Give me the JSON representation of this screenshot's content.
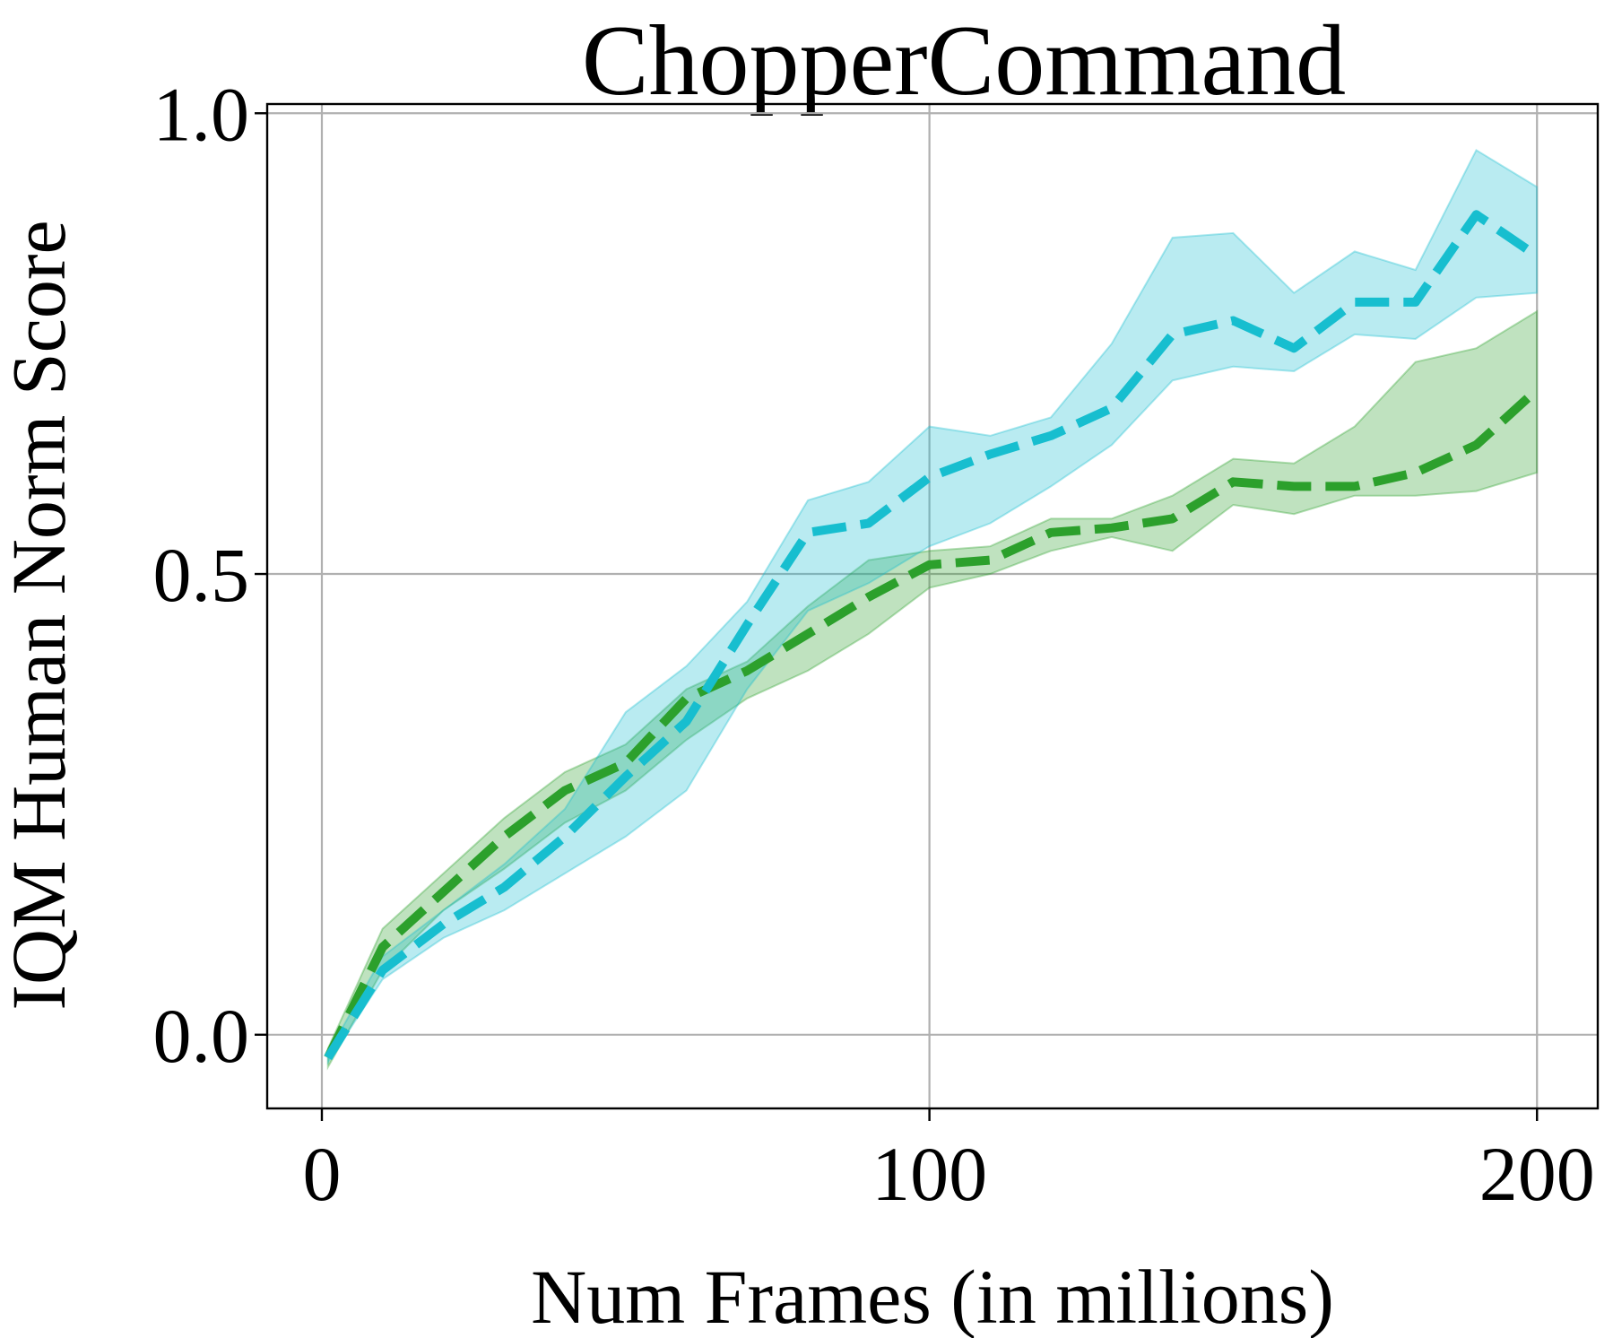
{
  "chart_data": {
    "type": "line",
    "title": "ChopperCommand",
    "xlabel": "Num Frames (in millions)",
    "ylabel": "IQM Human Norm Score",
    "xlim": [
      -9,
      210
    ],
    "ylim": [
      -0.08,
      1.01
    ],
    "xticks": [
      0,
      100,
      200
    ],
    "xtick_labels": [
      "0",
      "100",
      "200"
    ],
    "yticks": [
      0.0,
      0.5,
      1.0
    ],
    "ytick_labels": [
      "0.0",
      "0.5",
      "1.0"
    ],
    "grid": true,
    "legend": "none",
    "x": [
      1,
      10,
      20,
      30,
      40,
      50,
      60,
      70,
      80,
      90,
      100,
      110,
      120,
      130,
      140,
      150,
      160,
      170,
      180,
      190,
      200
    ],
    "series": [
      {
        "color": "#2ca02c",
        "line_style": "dashed",
        "values": [
          -0.025,
          0.095,
          0.155,
          0.215,
          0.265,
          0.295,
          0.365,
          0.395,
          0.435,
          0.475,
          0.51,
          0.515,
          0.545,
          0.55,
          0.56,
          0.6,
          0.595,
          0.595,
          0.61,
          0.64,
          0.7
        ],
        "lower": [
          -0.035,
          0.07,
          0.135,
          0.18,
          0.23,
          0.265,
          0.32,
          0.365,
          0.395,
          0.435,
          0.485,
          0.5,
          0.525,
          0.54,
          0.525,
          0.575,
          0.565,
          0.585,
          0.585,
          0.59,
          0.61
        ],
        "upper": [
          -0.015,
          0.115,
          0.175,
          0.235,
          0.285,
          0.315,
          0.375,
          0.405,
          0.465,
          0.515,
          0.525,
          0.53,
          0.56,
          0.56,
          0.585,
          0.625,
          0.62,
          0.66,
          0.73,
          0.745,
          0.785
        ]
      },
      {
        "color": "#17becf",
        "line_style": "dashed",
        "values": [
          -0.025,
          0.07,
          0.12,
          0.16,
          0.215,
          0.28,
          0.34,
          0.445,
          0.545,
          0.555,
          0.605,
          0.63,
          0.65,
          0.68,
          0.76,
          0.775,
          0.745,
          0.795,
          0.795,
          0.89,
          0.845
        ],
        "lower": [
          -0.03,
          0.06,
          0.105,
          0.135,
          0.175,
          0.215,
          0.265,
          0.375,
          0.46,
          0.49,
          0.53,
          0.555,
          0.595,
          0.64,
          0.71,
          0.725,
          0.72,
          0.76,
          0.755,
          0.8,
          0.805
        ],
        "upper": [
          -0.02,
          0.085,
          0.135,
          0.185,
          0.245,
          0.35,
          0.4,
          0.47,
          0.58,
          0.6,
          0.66,
          0.65,
          0.67,
          0.75,
          0.865,
          0.87,
          0.805,
          0.85,
          0.83,
          0.96,
          0.92
        ]
      }
    ]
  }
}
